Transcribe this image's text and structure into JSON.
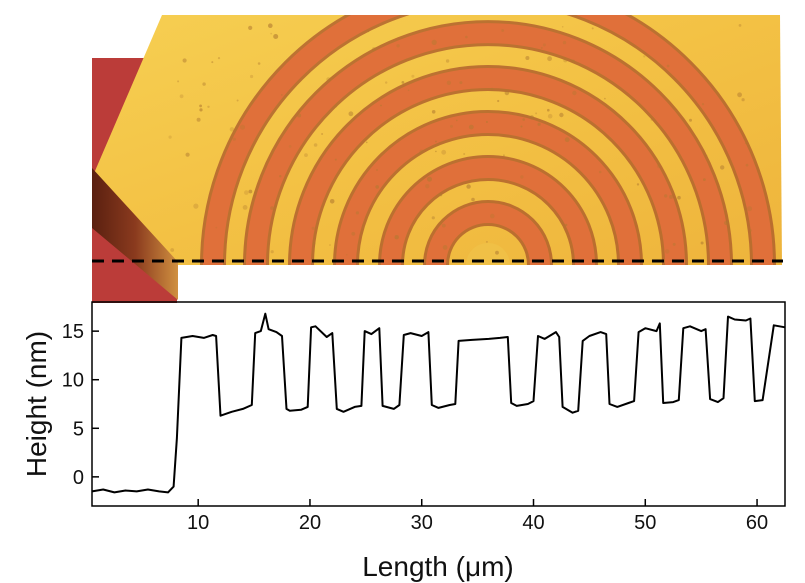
{
  "chart_data": {
    "type": "line",
    "title": "",
    "xlabel": "Length (μm)",
    "ylabel": "Height (nm)",
    "xlim": [
      0.5,
      62.5
    ],
    "ylim": [
      -3,
      18
    ],
    "xticks": [
      10,
      20,
      30,
      40,
      50,
      60
    ],
    "yticks": [
      0,
      5,
      10,
      15
    ],
    "xtick_labels": [
      "10",
      "20",
      "30",
      "40",
      "50",
      "60"
    ],
    "ytick_labels": [
      "0",
      "5",
      "10",
      "15"
    ],
    "grid": false,
    "legend": "none",
    "series": [
      {
        "name": "height profile",
        "color": "#000000",
        "x": [
          0.5,
          1.5,
          2.5,
          3.5,
          4.5,
          5.5,
          6.5,
          7.3,
          7.8,
          8.1,
          8.5,
          9.5,
          10.5,
          11.3,
          11.6,
          12.0,
          13.0,
          14.0,
          14.8,
          15.1,
          15.6,
          16.0,
          16.3,
          17.0,
          17.5,
          17.9,
          18.2,
          19.2,
          19.8,
          20.1,
          20.5,
          21.5,
          22.0,
          22.4,
          23.0,
          24.0,
          24.6,
          24.9,
          25.5,
          26.2,
          26.5,
          27.5,
          28.0,
          28.4,
          29.0,
          30.0,
          30.6,
          30.9,
          31.5,
          32.5,
          33.0,
          33.3,
          34.5,
          36.0,
          37.0,
          37.7,
          38.0,
          38.5,
          39.5,
          40.0,
          40.4,
          41.0,
          42.0,
          42.3,
          42.6,
          43.5,
          44.0,
          44.4,
          45.0,
          46.0,
          46.5,
          46.8,
          47.5,
          48.5,
          49.0,
          49.4,
          50.0,
          51.0,
          51.3,
          51.6,
          52.5,
          53.0,
          53.4,
          54.0,
          55.0,
          55.4,
          55.8,
          56.5,
          57.0,
          57.4,
          58.0,
          59.0,
          59.4,
          59.8,
          60.5,
          61.5,
          62.5
        ],
        "y": [
          -1.5,
          -1.3,
          -1.6,
          -1.4,
          -1.5,
          -1.3,
          -1.5,
          -1.6,
          -1.0,
          4.0,
          14.3,
          14.5,
          14.3,
          14.6,
          14.5,
          6.3,
          6.7,
          7.0,
          7.4,
          14.8,
          15.0,
          16.8,
          15.2,
          14.9,
          14.5,
          7.0,
          6.8,
          6.9,
          7.2,
          15.4,
          15.5,
          14.4,
          14.8,
          7.0,
          6.7,
          7.2,
          7.3,
          15.0,
          14.7,
          15.3,
          7.3,
          7.0,
          7.4,
          14.6,
          14.8,
          14.5,
          14.9,
          7.4,
          7.1,
          7.4,
          7.5,
          14.0,
          14.1,
          14.2,
          14.3,
          14.4,
          7.6,
          7.3,
          7.5,
          7.8,
          14.5,
          14.2,
          14.9,
          14.4,
          7.2,
          6.6,
          6.8,
          14.0,
          14.5,
          14.9,
          14.7,
          7.5,
          7.2,
          7.6,
          7.8,
          14.9,
          15.3,
          15.0,
          15.8,
          7.6,
          7.7,
          7.9,
          15.3,
          15.5,
          15.0,
          15.2,
          8.0,
          7.7,
          8.1,
          16.5,
          16.2,
          16.1,
          16.3,
          7.8,
          7.9,
          15.6,
          15.4
        ]
      }
    ]
  },
  "image": {
    "kind": "AFM topography of concentric semicircular rings",
    "colors": {
      "background_dark": "#c4403d",
      "surface_light": "#f3c84a",
      "ring_trench": "#e0703a",
      "ring_shadow": "#a8552a",
      "scan_line": "#000000"
    }
  }
}
